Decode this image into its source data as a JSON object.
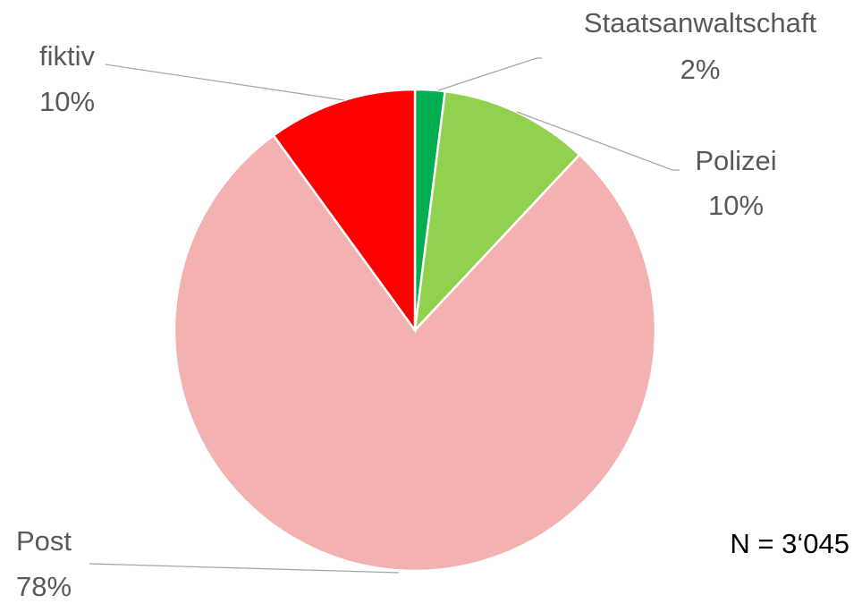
{
  "chart_data": {
    "type": "pie",
    "categories": [
      "Staatsanwaltschaft",
      "Polizei",
      "Post",
      "fiktiv"
    ],
    "values": [
      2,
      10,
      78,
      10
    ],
    "value_labels": [
      "2%",
      "10%",
      "78%",
      "10%"
    ],
    "colors": [
      "#00b050",
      "#92d050",
      "#f4b1b1",
      "#ff0000"
    ],
    "annotation": "N = 3‘045"
  }
}
